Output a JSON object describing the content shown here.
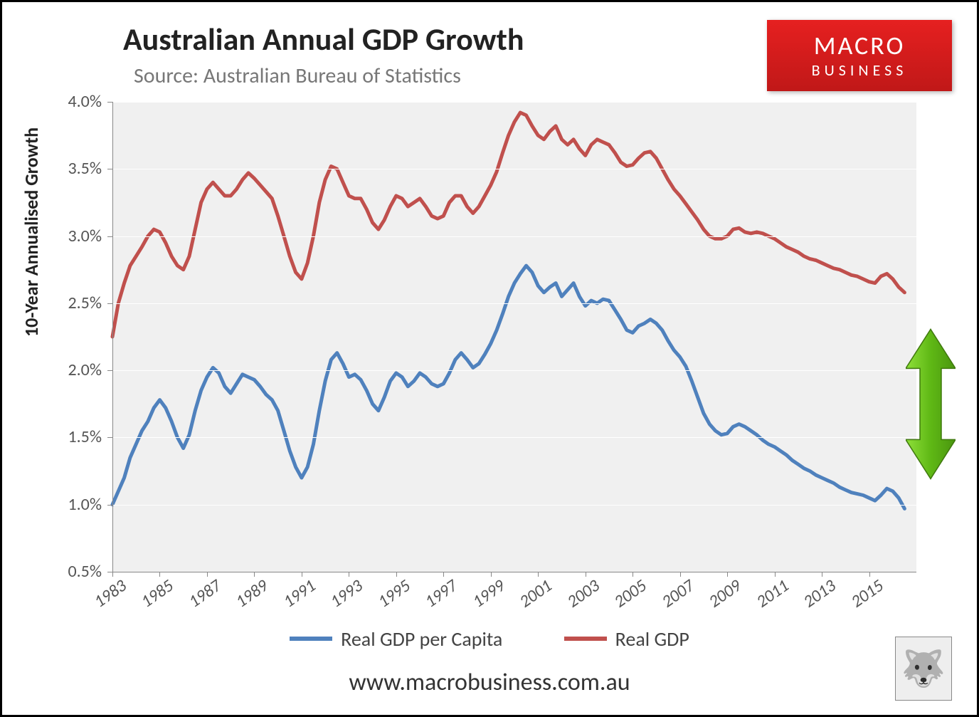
{
  "title": "Australian Annual GDP Growth",
  "source": "Source: Australian Bureau of Statistics",
  "logo": {
    "line1": "MACRO",
    "line2": "BUSINESS"
  },
  "y_axis_label": "10-Year Annualised Growth",
  "footer_url": "www.macrobusiness.com.au",
  "chart": {
    "type": "line",
    "background_color": "#f0f0f0",
    "grid_color": "#ffffff",
    "ylim": [
      0.5,
      4.0
    ],
    "ytick_step": 0.5,
    "yticks": [
      "0.5%",
      "1.0%",
      "1.5%",
      "2.0%",
      "2.5%",
      "3.0%",
      "3.5%",
      "4.0%"
    ],
    "xlim": [
      1983,
      2017
    ],
    "xtick_step": 2,
    "xticks": [
      "1983",
      "1985",
      "1987",
      "1989",
      "1991",
      "1993",
      "1995",
      "1997",
      "1999",
      "2001",
      "2003",
      "2005",
      "2007",
      "2009",
      "2011",
      "2013",
      "2015"
    ],
    "line_width": 5,
    "series": [
      {
        "name": "Real GDP per Capita",
        "color": "#4f81bd",
        "data": [
          [
            1983.0,
            1.0
          ],
          [
            1983.25,
            1.1
          ],
          [
            1983.5,
            1.2
          ],
          [
            1983.75,
            1.35
          ],
          [
            1984.0,
            1.45
          ],
          [
            1984.25,
            1.55
          ],
          [
            1984.5,
            1.62
          ],
          [
            1984.75,
            1.72
          ],
          [
            1985.0,
            1.78
          ],
          [
            1985.25,
            1.72
          ],
          [
            1985.5,
            1.62
          ],
          [
            1985.75,
            1.5
          ],
          [
            1986.0,
            1.42
          ],
          [
            1986.25,
            1.52
          ],
          [
            1986.5,
            1.7
          ],
          [
            1986.75,
            1.85
          ],
          [
            1987.0,
            1.95
          ],
          [
            1987.25,
            2.02
          ],
          [
            1987.5,
            1.98
          ],
          [
            1987.75,
            1.88
          ],
          [
            1988.0,
            1.83
          ],
          [
            1988.25,
            1.9
          ],
          [
            1988.5,
            1.97
          ],
          [
            1988.75,
            1.95
          ],
          [
            1989.0,
            1.93
          ],
          [
            1989.25,
            1.88
          ],
          [
            1989.5,
            1.82
          ],
          [
            1989.75,
            1.78
          ],
          [
            1990.0,
            1.7
          ],
          [
            1990.25,
            1.55
          ],
          [
            1990.5,
            1.4
          ],
          [
            1990.75,
            1.28
          ],
          [
            1991.0,
            1.2
          ],
          [
            1991.25,
            1.28
          ],
          [
            1991.5,
            1.45
          ],
          [
            1991.75,
            1.7
          ],
          [
            1992.0,
            1.92
          ],
          [
            1992.25,
            2.08
          ],
          [
            1992.5,
            2.13
          ],
          [
            1992.75,
            2.05
          ],
          [
            1993.0,
            1.95
          ],
          [
            1993.25,
            1.97
          ],
          [
            1993.5,
            1.93
          ],
          [
            1993.75,
            1.85
          ],
          [
            1994.0,
            1.75
          ],
          [
            1994.25,
            1.7
          ],
          [
            1994.5,
            1.8
          ],
          [
            1994.75,
            1.92
          ],
          [
            1995.0,
            1.98
          ],
          [
            1995.25,
            1.95
          ],
          [
            1995.5,
            1.88
          ],
          [
            1995.75,
            1.92
          ],
          [
            1996.0,
            1.98
          ],
          [
            1996.25,
            1.95
          ],
          [
            1996.5,
            1.9
          ],
          [
            1996.75,
            1.88
          ],
          [
            1997.0,
            1.9
          ],
          [
            1997.25,
            1.98
          ],
          [
            1997.5,
            2.08
          ],
          [
            1997.75,
            2.13
          ],
          [
            1998.0,
            2.08
          ],
          [
            1998.25,
            2.02
          ],
          [
            1998.5,
            2.05
          ],
          [
            1998.75,
            2.12
          ],
          [
            1999.0,
            2.2
          ],
          [
            1999.25,
            2.3
          ],
          [
            1999.5,
            2.42
          ],
          [
            1999.75,
            2.55
          ],
          [
            2000.0,
            2.65
          ],
          [
            2000.25,
            2.72
          ],
          [
            2000.5,
            2.78
          ],
          [
            2000.75,
            2.73
          ],
          [
            2001.0,
            2.63
          ],
          [
            2001.25,
            2.58
          ],
          [
            2001.5,
            2.62
          ],
          [
            2001.75,
            2.65
          ],
          [
            2002.0,
            2.55
          ],
          [
            2002.25,
            2.6
          ],
          [
            2002.5,
            2.65
          ],
          [
            2002.75,
            2.55
          ],
          [
            2003.0,
            2.48
          ],
          [
            2003.25,
            2.52
          ],
          [
            2003.5,
            2.5
          ],
          [
            2003.75,
            2.53
          ],
          [
            2004.0,
            2.52
          ],
          [
            2004.25,
            2.45
          ],
          [
            2004.5,
            2.38
          ],
          [
            2004.75,
            2.3
          ],
          [
            2005.0,
            2.28
          ],
          [
            2005.25,
            2.33
          ],
          [
            2005.5,
            2.35
          ],
          [
            2005.75,
            2.38
          ],
          [
            2006.0,
            2.35
          ],
          [
            2006.25,
            2.3
          ],
          [
            2006.5,
            2.22
          ],
          [
            2006.75,
            2.15
          ],
          [
            2007.0,
            2.1
          ],
          [
            2007.25,
            2.03
          ],
          [
            2007.5,
            1.92
          ],
          [
            2007.75,
            1.8
          ],
          [
            2008.0,
            1.68
          ],
          [
            2008.25,
            1.6
          ],
          [
            2008.5,
            1.55
          ],
          [
            2008.75,
            1.52
          ],
          [
            2009.0,
            1.53
          ],
          [
            2009.25,
            1.58
          ],
          [
            2009.5,
            1.6
          ],
          [
            2009.75,
            1.58
          ],
          [
            2010.0,
            1.55
          ],
          [
            2010.25,
            1.52
          ],
          [
            2010.5,
            1.48
          ],
          [
            2010.75,
            1.45
          ],
          [
            2011.0,
            1.43
          ],
          [
            2011.25,
            1.4
          ],
          [
            2011.5,
            1.37
          ],
          [
            2011.75,
            1.33
          ],
          [
            2012.0,
            1.3
          ],
          [
            2012.25,
            1.27
          ],
          [
            2012.5,
            1.25
          ],
          [
            2012.75,
            1.22
          ],
          [
            2013.0,
            1.2
          ],
          [
            2013.25,
            1.18
          ],
          [
            2013.5,
            1.16
          ],
          [
            2013.75,
            1.13
          ],
          [
            2014.0,
            1.11
          ],
          [
            2014.25,
            1.09
          ],
          [
            2014.5,
            1.08
          ],
          [
            2014.75,
            1.07
          ],
          [
            2015.0,
            1.05
          ],
          [
            2015.25,
            1.03
          ],
          [
            2015.5,
            1.07
          ],
          [
            2015.75,
            1.12
          ],
          [
            2016.0,
            1.1
          ],
          [
            2016.25,
            1.05
          ],
          [
            2016.5,
            0.97
          ]
        ]
      },
      {
        "name": "Real GDP",
        "color": "#c0504d",
        "data": [
          [
            1983.0,
            2.25
          ],
          [
            1983.25,
            2.5
          ],
          [
            1983.5,
            2.65
          ],
          [
            1983.75,
            2.78
          ],
          [
            1984.0,
            2.85
          ],
          [
            1984.25,
            2.92
          ],
          [
            1984.5,
            3.0
          ],
          [
            1984.75,
            3.05
          ],
          [
            1985.0,
            3.03
          ],
          [
            1985.25,
            2.95
          ],
          [
            1985.5,
            2.85
          ],
          [
            1985.75,
            2.78
          ],
          [
            1986.0,
            2.75
          ],
          [
            1986.25,
            2.85
          ],
          [
            1986.5,
            3.05
          ],
          [
            1986.75,
            3.25
          ],
          [
            1987.0,
            3.35
          ],
          [
            1987.25,
            3.4
          ],
          [
            1987.5,
            3.35
          ],
          [
            1987.75,
            3.3
          ],
          [
            1988.0,
            3.3
          ],
          [
            1988.25,
            3.35
          ],
          [
            1988.5,
            3.42
          ],
          [
            1988.75,
            3.47
          ],
          [
            1989.0,
            3.43
          ],
          [
            1989.25,
            3.38
          ],
          [
            1989.5,
            3.33
          ],
          [
            1989.75,
            3.28
          ],
          [
            1990.0,
            3.15
          ],
          [
            1990.25,
            3.0
          ],
          [
            1990.5,
            2.85
          ],
          [
            1990.75,
            2.73
          ],
          [
            1991.0,
            2.68
          ],
          [
            1991.25,
            2.8
          ],
          [
            1991.5,
            3.0
          ],
          [
            1991.75,
            3.25
          ],
          [
            1992.0,
            3.42
          ],
          [
            1992.25,
            3.52
          ],
          [
            1992.5,
            3.5
          ],
          [
            1992.75,
            3.4
          ],
          [
            1993.0,
            3.3
          ],
          [
            1993.25,
            3.28
          ],
          [
            1993.5,
            3.28
          ],
          [
            1993.75,
            3.2
          ],
          [
            1994.0,
            3.1
          ],
          [
            1994.25,
            3.05
          ],
          [
            1994.5,
            3.12
          ],
          [
            1994.75,
            3.22
          ],
          [
            1995.0,
            3.3
          ],
          [
            1995.25,
            3.28
          ],
          [
            1995.5,
            3.22
          ],
          [
            1995.75,
            3.25
          ],
          [
            1996.0,
            3.28
          ],
          [
            1996.25,
            3.22
          ],
          [
            1996.5,
            3.15
          ],
          [
            1996.75,
            3.13
          ],
          [
            1997.0,
            3.15
          ],
          [
            1997.25,
            3.25
          ],
          [
            1997.5,
            3.3
          ],
          [
            1997.75,
            3.3
          ],
          [
            1998.0,
            3.22
          ],
          [
            1998.25,
            3.17
          ],
          [
            1998.5,
            3.22
          ],
          [
            1998.75,
            3.3
          ],
          [
            1999.0,
            3.38
          ],
          [
            1999.25,
            3.48
          ],
          [
            1999.5,
            3.62
          ],
          [
            1999.75,
            3.75
          ],
          [
            2000.0,
            3.85
          ],
          [
            2000.25,
            3.92
          ],
          [
            2000.5,
            3.9
          ],
          [
            2000.75,
            3.82
          ],
          [
            2001.0,
            3.75
          ],
          [
            2001.25,
            3.72
          ],
          [
            2001.5,
            3.78
          ],
          [
            2001.75,
            3.82
          ],
          [
            2002.0,
            3.72
          ],
          [
            2002.25,
            3.68
          ],
          [
            2002.5,
            3.72
          ],
          [
            2002.75,
            3.65
          ],
          [
            2003.0,
            3.6
          ],
          [
            2003.25,
            3.68
          ],
          [
            2003.5,
            3.72
          ],
          [
            2003.75,
            3.7
          ],
          [
            2004.0,
            3.68
          ],
          [
            2004.25,
            3.62
          ],
          [
            2004.5,
            3.55
          ],
          [
            2004.75,
            3.52
          ],
          [
            2005.0,
            3.53
          ],
          [
            2005.25,
            3.58
          ],
          [
            2005.5,
            3.62
          ],
          [
            2005.75,
            3.63
          ],
          [
            2006.0,
            3.58
          ],
          [
            2006.25,
            3.5
          ],
          [
            2006.5,
            3.42
          ],
          [
            2006.75,
            3.35
          ],
          [
            2007.0,
            3.3
          ],
          [
            2007.25,
            3.24
          ],
          [
            2007.5,
            3.18
          ],
          [
            2007.75,
            3.12
          ],
          [
            2008.0,
            3.05
          ],
          [
            2008.25,
            3.0
          ],
          [
            2008.5,
            2.98
          ],
          [
            2008.75,
            2.98
          ],
          [
            2009.0,
            3.0
          ],
          [
            2009.25,
            3.05
          ],
          [
            2009.5,
            3.06
          ],
          [
            2009.75,
            3.03
          ],
          [
            2010.0,
            3.02
          ],
          [
            2010.25,
            3.03
          ],
          [
            2010.5,
            3.02
          ],
          [
            2010.75,
            3.0
          ],
          [
            2011.0,
            2.98
          ],
          [
            2011.25,
            2.95
          ],
          [
            2011.5,
            2.92
          ],
          [
            2011.75,
            2.9
          ],
          [
            2012.0,
            2.88
          ],
          [
            2012.25,
            2.85
          ],
          [
            2012.5,
            2.83
          ],
          [
            2012.75,
            2.82
          ],
          [
            2013.0,
            2.8
          ],
          [
            2013.25,
            2.78
          ],
          [
            2013.5,
            2.76
          ],
          [
            2013.75,
            2.75
          ],
          [
            2014.0,
            2.73
          ],
          [
            2014.25,
            2.71
          ],
          [
            2014.5,
            2.7
          ],
          [
            2014.75,
            2.68
          ],
          [
            2015.0,
            2.66
          ],
          [
            2015.25,
            2.65
          ],
          [
            2015.5,
            2.7
          ],
          [
            2015.75,
            2.72
          ],
          [
            2016.0,
            2.68
          ],
          [
            2016.25,
            2.62
          ],
          [
            2016.5,
            2.58
          ]
        ]
      }
    ]
  },
  "arrow": {
    "fill": "#6ec918",
    "stroke": "#3f780e"
  },
  "arrow_range": [
    1.0,
    2.5
  ]
}
